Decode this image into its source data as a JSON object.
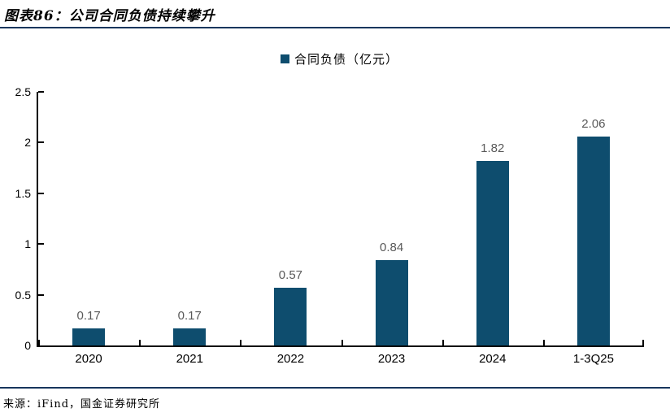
{
  "figure": {
    "title": "图表86：公司合同负债持续攀升",
    "source": "来源：iFind，国金证券研究所"
  },
  "legend": {
    "label": "合同负债（亿元）"
  },
  "chart_data": {
    "type": "bar",
    "title": "图表86：公司合同负债持续攀升",
    "categories": [
      "2020",
      "2021",
      "2022",
      "2023",
      "2024",
      "1-3Q25"
    ],
    "series": [
      {
        "name": "合同负债（亿元）",
        "values": [
          0.17,
          0.17,
          0.57,
          0.84,
          1.82,
          2.06
        ],
        "data_labels": [
          "0.17",
          "0.17",
          "0.57",
          "0.84",
          "1.82",
          "2.06"
        ]
      }
    ],
    "xlabel": "",
    "ylabel": "",
    "ylim": [
      0,
      2.5
    ],
    "ytick_values": [
      0,
      0.5,
      1,
      1.5,
      2,
      2.5
    ],
    "ytick_labels": [
      "0",
      "0.5",
      "1",
      "1.5",
      "2",
      "2.5"
    ],
    "grid": false,
    "legend_position": "top-center",
    "colors": {
      "bar": "#0E4D6E",
      "rule": "#17365D",
      "axis": "#000000",
      "data_label": "#595959",
      "tick_label": "#000000"
    }
  }
}
